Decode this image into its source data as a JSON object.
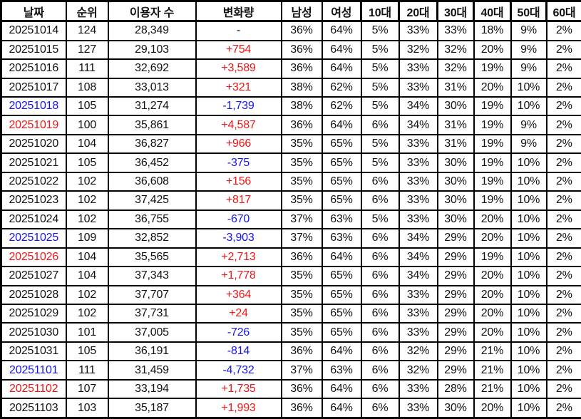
{
  "colors": {
    "default": "#111111",
    "red": "#f21414",
    "blue": "#1414f0",
    "border": "#000000",
    "background": "#ffffff"
  },
  "table": {
    "columns": [
      {
        "id": "date",
        "label": "날짜"
      },
      {
        "id": "rank",
        "label": "순위"
      },
      {
        "id": "users",
        "label": "이용자 수"
      },
      {
        "id": "change",
        "label": "변화량"
      },
      {
        "id": "male",
        "label": "남성"
      },
      {
        "id": "female",
        "label": "여성"
      },
      {
        "id": "age10",
        "label": "10대"
      },
      {
        "id": "age20",
        "label": "20대"
      },
      {
        "id": "age30",
        "label": "30대"
      },
      {
        "id": "age40",
        "label": "40대"
      },
      {
        "id": "age50",
        "label": "50대"
      },
      {
        "id": "age60",
        "label": "60대"
      }
    ],
    "rows": [
      {
        "date": "20251014",
        "date_color": "default",
        "rank": "124",
        "users": "28,349",
        "change": "-",
        "change_color": "default",
        "male": "36%",
        "female": "64%",
        "age10": "5%",
        "age20": "33%",
        "age30": "33%",
        "age40": "18%",
        "age50": "9%",
        "age60": "2%"
      },
      {
        "date": "20251015",
        "date_color": "default",
        "rank": "127",
        "users": "29,103",
        "change": "+754",
        "change_color": "red",
        "male": "36%",
        "female": "64%",
        "age10": "5%",
        "age20": "32%",
        "age30": "32%",
        "age40": "20%",
        "age50": "9%",
        "age60": "2%"
      },
      {
        "date": "20251016",
        "date_color": "default",
        "rank": "111",
        "users": "32,692",
        "change": "+3,589",
        "change_color": "red",
        "male": "36%",
        "female": "64%",
        "age10": "5%",
        "age20": "33%",
        "age30": "32%",
        "age40": "19%",
        "age50": "9%",
        "age60": "2%"
      },
      {
        "date": "20251017",
        "date_color": "default",
        "rank": "108",
        "users": "33,013",
        "change": "+321",
        "change_color": "red",
        "male": "38%",
        "female": "62%",
        "age10": "5%",
        "age20": "33%",
        "age30": "31%",
        "age40": "20%",
        "age50": "10%",
        "age60": "2%"
      },
      {
        "date": "20251018",
        "date_color": "blue",
        "rank": "105",
        "users": "31,274",
        "change": "-1,739",
        "change_color": "blue",
        "male": "38%",
        "female": "62%",
        "age10": "5%",
        "age20": "34%",
        "age30": "30%",
        "age40": "19%",
        "age50": "10%",
        "age60": "2%"
      },
      {
        "date": "20251019",
        "date_color": "red",
        "rank": "100",
        "users": "35,861",
        "change": "+4,587",
        "change_color": "red",
        "male": "36%",
        "female": "64%",
        "age10": "6%",
        "age20": "34%",
        "age30": "31%",
        "age40": "19%",
        "age50": "9%",
        "age60": "2%"
      },
      {
        "date": "20251020",
        "date_color": "default",
        "rank": "104",
        "users": "36,827",
        "change": "+966",
        "change_color": "red",
        "male": "35%",
        "female": "65%",
        "age10": "5%",
        "age20": "33%",
        "age30": "31%",
        "age40": "19%",
        "age50": "9%",
        "age60": "2%"
      },
      {
        "date": "20251021",
        "date_color": "default",
        "rank": "105",
        "users": "36,452",
        "change": "-375",
        "change_color": "blue",
        "male": "35%",
        "female": "65%",
        "age10": "5%",
        "age20": "33%",
        "age30": "30%",
        "age40": "19%",
        "age50": "10%",
        "age60": "2%"
      },
      {
        "date": "20251022",
        "date_color": "default",
        "rank": "102",
        "users": "36,608",
        "change": "+156",
        "change_color": "red",
        "male": "35%",
        "female": "65%",
        "age10": "6%",
        "age20": "33%",
        "age30": "30%",
        "age40": "19%",
        "age50": "10%",
        "age60": "2%"
      },
      {
        "date": "20251023",
        "date_color": "default",
        "rank": "102",
        "users": "37,425",
        "change": "+817",
        "change_color": "red",
        "male": "35%",
        "female": "65%",
        "age10": "6%",
        "age20": "33%",
        "age30": "30%",
        "age40": "19%",
        "age50": "10%",
        "age60": "2%"
      },
      {
        "date": "20251024",
        "date_color": "default",
        "rank": "102",
        "users": "36,755",
        "change": "-670",
        "change_color": "blue",
        "male": "37%",
        "female": "63%",
        "age10": "5%",
        "age20": "33%",
        "age30": "30%",
        "age40": "20%",
        "age50": "10%",
        "age60": "2%"
      },
      {
        "date": "20251025",
        "date_color": "blue",
        "rank": "109",
        "users": "32,852",
        "change": "-3,903",
        "change_color": "blue",
        "male": "37%",
        "female": "63%",
        "age10": "6%",
        "age20": "34%",
        "age30": "29%",
        "age40": "20%",
        "age50": "10%",
        "age60": "2%"
      },
      {
        "date": "20251026",
        "date_color": "red",
        "rank": "104",
        "users": "35,565",
        "change": "+2,713",
        "change_color": "red",
        "male": "36%",
        "female": "64%",
        "age10": "6%",
        "age20": "34%",
        "age30": "29%",
        "age40": "19%",
        "age50": "10%",
        "age60": "2%"
      },
      {
        "date": "20251027",
        "date_color": "default",
        "rank": "104",
        "users": "37,343",
        "change": "+1,778",
        "change_color": "red",
        "male": "35%",
        "female": "65%",
        "age10": "6%",
        "age20": "34%",
        "age30": "29%",
        "age40": "20%",
        "age50": "10%",
        "age60": "2%"
      },
      {
        "date": "20251028",
        "date_color": "default",
        "rank": "102",
        "users": "37,707",
        "change": "+364",
        "change_color": "red",
        "male": "35%",
        "female": "65%",
        "age10": "6%",
        "age20": "33%",
        "age30": "29%",
        "age40": "20%",
        "age50": "10%",
        "age60": "2%"
      },
      {
        "date": "20251029",
        "date_color": "default",
        "rank": "102",
        "users": "37,731",
        "change": "+24",
        "change_color": "red",
        "male": "35%",
        "female": "65%",
        "age10": "6%",
        "age20": "33%",
        "age30": "29%",
        "age40": "20%",
        "age50": "10%",
        "age60": "2%"
      },
      {
        "date": "20251030",
        "date_color": "default",
        "rank": "101",
        "users": "37,005",
        "change": "-726",
        "change_color": "blue",
        "male": "35%",
        "female": "65%",
        "age10": "6%",
        "age20": "33%",
        "age30": "29%",
        "age40": "20%",
        "age50": "10%",
        "age60": "2%"
      },
      {
        "date": "20251031",
        "date_color": "default",
        "rank": "105",
        "users": "36,191",
        "change": "-814",
        "change_color": "blue",
        "male": "36%",
        "female": "64%",
        "age10": "6%",
        "age20": "32%",
        "age30": "29%",
        "age40": "21%",
        "age50": "10%",
        "age60": "2%"
      },
      {
        "date": "20251101",
        "date_color": "blue",
        "rank": "111",
        "users": "31,459",
        "change": "-4,732",
        "change_color": "blue",
        "male": "37%",
        "female": "63%",
        "age10": "6%",
        "age20": "32%",
        "age30": "29%",
        "age40": "21%",
        "age50": "10%",
        "age60": "2%"
      },
      {
        "date": "20251102",
        "date_color": "red",
        "rank": "107",
        "users": "33,194",
        "change": "+1,735",
        "change_color": "red",
        "male": "36%",
        "female": "64%",
        "age10": "6%",
        "age20": "33%",
        "age30": "28%",
        "age40": "21%",
        "age50": "10%",
        "age60": "2%"
      },
      {
        "date": "20251103",
        "date_color": "default",
        "rank": "103",
        "users": "35,187",
        "change": "+1,993",
        "change_color": "red",
        "male": "36%",
        "female": "64%",
        "age10": "6%",
        "age20": "33%",
        "age30": "30%",
        "age40": "20%",
        "age50": "10%",
        "age60": "2%"
      }
    ]
  }
}
